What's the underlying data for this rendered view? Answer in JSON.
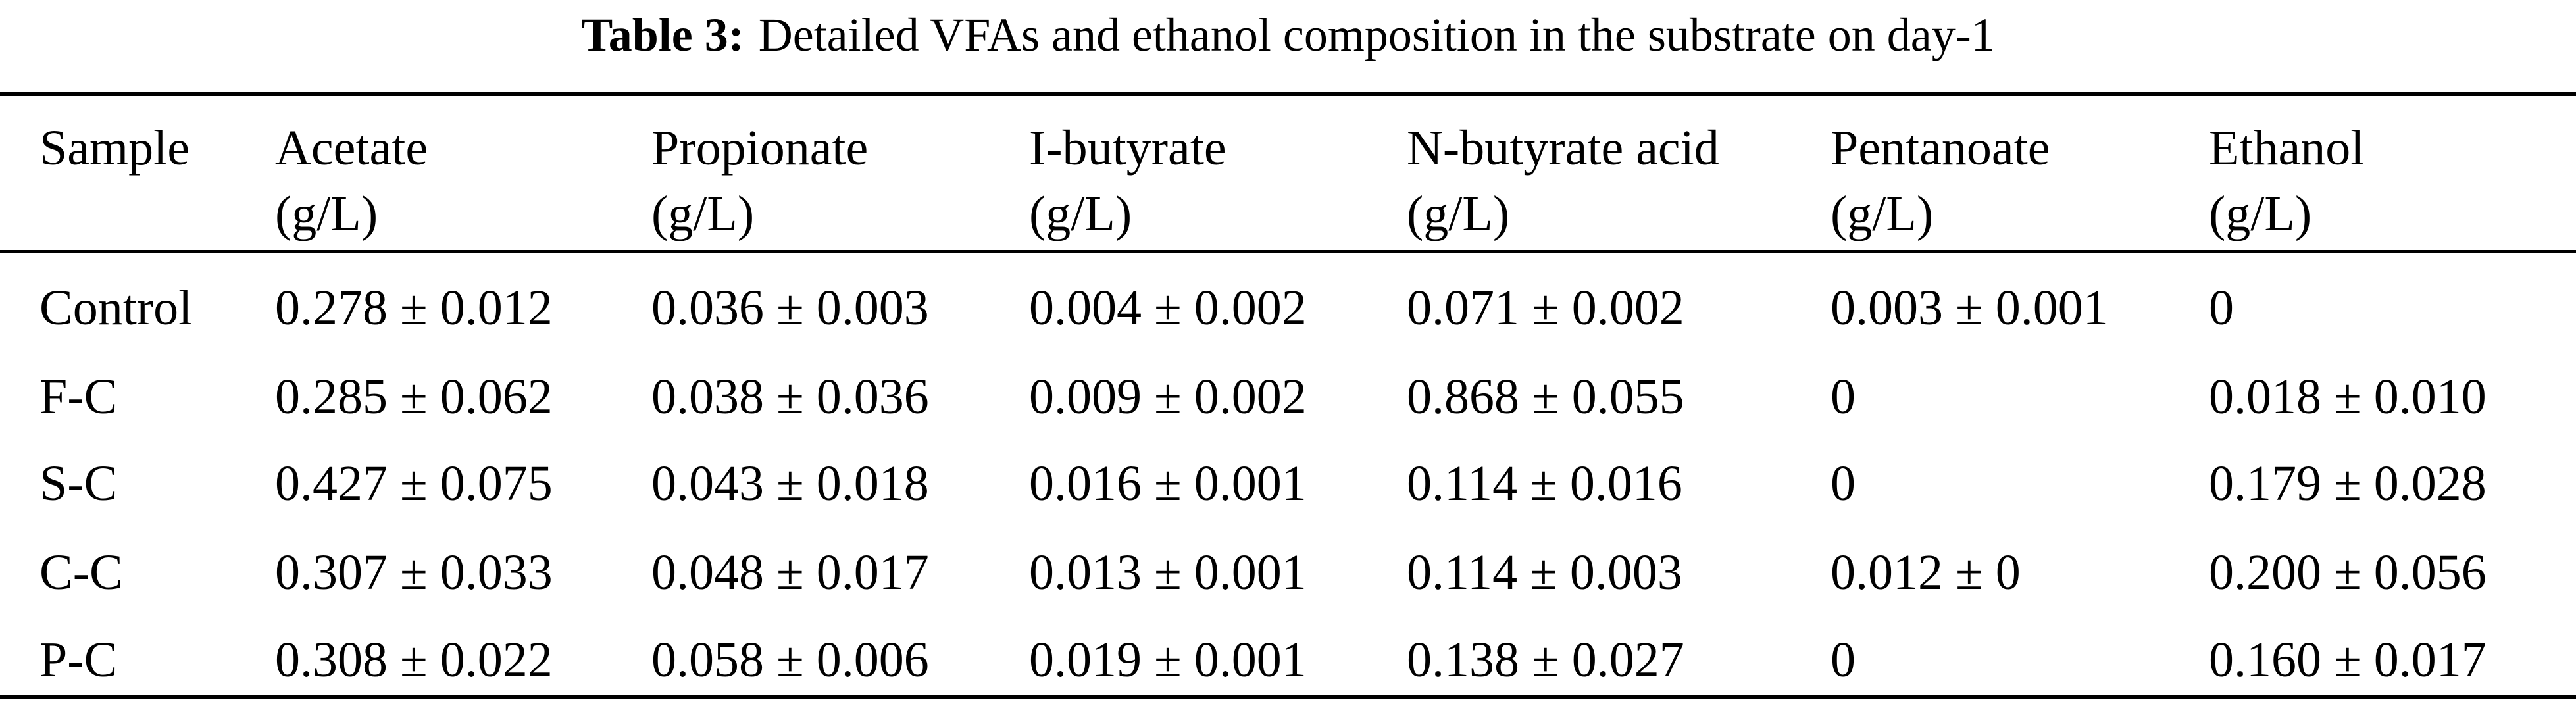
{
  "caption": {
    "label": "Table 3:",
    "text": "Detailed VFAs and ethanol composition in the substrate on day-1"
  },
  "table": {
    "columns": [
      {
        "name": "Sample"
      },
      {
        "name": "Acetate",
        "unit": "(g/L)"
      },
      {
        "name": "Propionate",
        "unit": "(g/L)"
      },
      {
        "name": "I-butyrate",
        "unit": "(g/L)"
      },
      {
        "name": "N-butyrate acid",
        "unit": "(g/L)"
      },
      {
        "name": "Pentanoate",
        "unit": "(g/L)"
      },
      {
        "name": "Ethanol",
        "unit": "(g/L)"
      }
    ],
    "rows": [
      [
        "Control",
        "0.278 ± 0.012",
        "0.036 ± 0.003",
        "0.004 ± 0.002",
        "0.071 ± 0.002",
        "0.003 ± 0.001",
        "0"
      ],
      [
        "F-C",
        "0.285 ± 0.062",
        "0.038 ± 0.036",
        "0.009 ± 0.002",
        "0.868 ± 0.055",
        "0",
        "0.018 ± 0.010"
      ],
      [
        "S-C",
        "0.427 ± 0.075",
        "0.043 ± 0.018",
        "0.016 ± 0.001",
        "0.114 ± 0.016",
        "0",
        "0.179 ± 0.028"
      ],
      [
        "C-C",
        "0.307 ± 0.033",
        "0.048 ± 0.017",
        "0.013 ± 0.001",
        "0.114 ± 0.003",
        "0.012 ± 0",
        "0.200 ± 0.056"
      ],
      [
        "P-C",
        "0.308 ± 0.022",
        "0.058 ± 0.006",
        "0.019 ± 0.001",
        "0.138 ± 0.027",
        "0",
        "0.160 ± 0.017"
      ]
    ]
  }
}
